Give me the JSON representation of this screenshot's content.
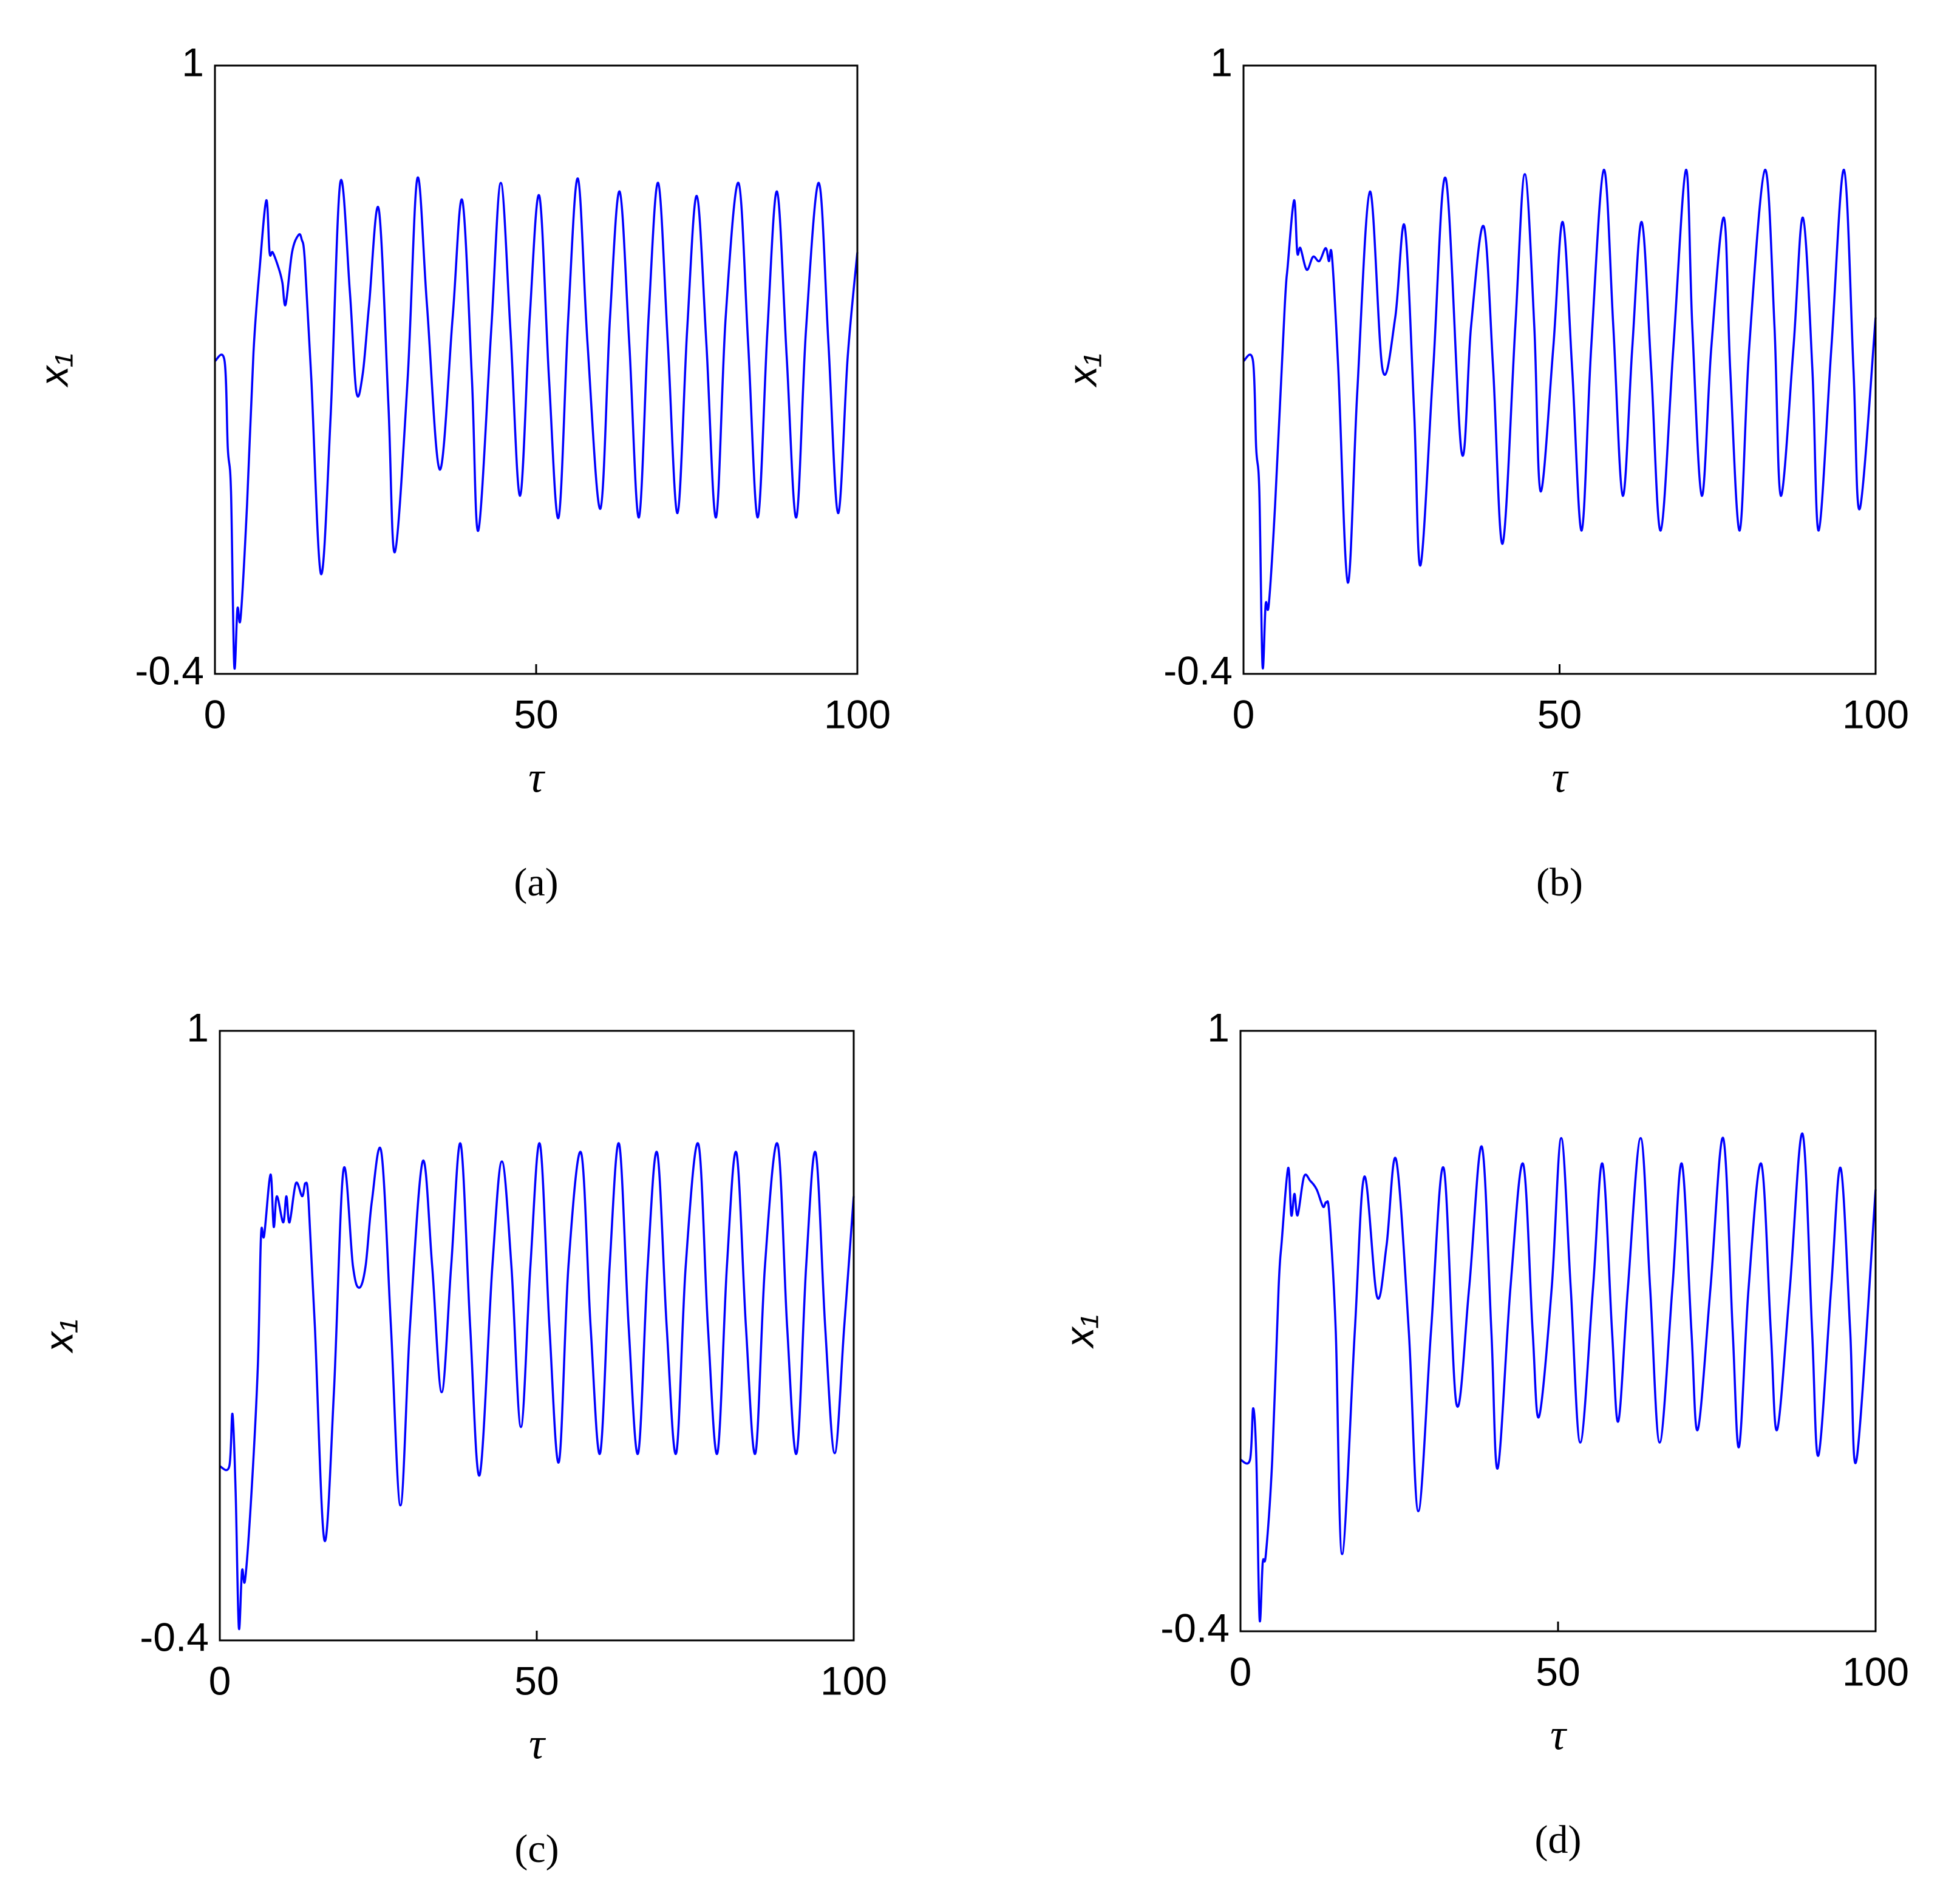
{
  "chart_data": [
    {
      "type": "line",
      "caption": "(a)",
      "x_label": "τ",
      "y_label": "x₁",
      "color": "#0000ff",
      "xlim": [
        0,
        100
      ],
      "xticks": [
        0,
        50,
        100
      ],
      "ylim": [
        -0.4,
        1
      ],
      "yticks": [
        -0.4,
        1
      ],
      "x": [
        0,
        1.5,
        2,
        2.5,
        3,
        3.5,
        4,
        5,
        6,
        7,
        8,
        8.5,
        9,
        10,
        10.5,
        11,
        12,
        13,
        13.5,
        14,
        15,
        16.5,
        18,
        19.5,
        21,
        22,
        23,
        24,
        25.5,
        27,
        28,
        30,
        31.5,
        33,
        35,
        37,
        38.5,
        40,
        41,
        43,
        44.5,
        46,
        47.5,
        49,
        50.5,
        52,
        53.5,
        55,
        56.5,
        58,
        60,
        61.5,
        63,
        64.5,
        66,
        67.5,
        69,
        70.5,
        72,
        73.5,
        75,
        76.5,
        78,
        79.5,
        81.5,
        83,
        84.5,
        86,
        87.5,
        89,
        90.5,
        92,
        94,
        95.5,
        97,
        98.5,
        100
      ],
      "values": [
        0.32,
        0.32,
        0.12,
        0.02,
        -0.38,
        -0.25,
        -0.27,
        -0.01,
        0.34,
        0.54,
        0.69,
        0.57,
        0.57,
        0.53,
        0.5,
        0.45,
        0.57,
        0.61,
        0.6,
        0.55,
        0.28,
        -0.17,
        0.19,
        0.73,
        0.48,
        0.25,
        0.29,
        0.45,
        0.67,
        0.22,
        -0.12,
        0.28,
        0.74,
        0.45,
        0.07,
        0.42,
        0.69,
        0.28,
        -0.07,
        0.39,
        0.73,
        0.39,
        0.01,
        0.42,
        0.7,
        0.28,
        -0.04,
        0.42,
        0.74,
        0.36,
        -0.02,
        0.42,
        0.71,
        0.36,
        -0.04,
        0.42,
        0.73,
        0.36,
        -0.03,
        0.39,
        0.7,
        0.36,
        -0.04,
        0.42,
        0.73,
        0.36,
        -0.04,
        0.39,
        0.71,
        0.33,
        -0.04,
        0.39,
        0.73,
        0.36,
        -0.03,
        0.33,
        0.57
      ]
    },
    {
      "type": "line",
      "caption": "(b)",
      "x_label": "τ",
      "y_label": "x₁",
      "color": "#0000ff",
      "xlim": [
        0,
        100
      ],
      "xticks": [
        0,
        50,
        100
      ],
      "ylim": [
        -0.4,
        1
      ],
      "yticks": [
        -0.4,
        1
      ],
      "x": [
        0,
        1.5,
        2,
        2.5,
        3,
        3.5,
        4,
        5,
        6.5,
        7,
        8,
        8.5,
        9,
        10,
        11,
        12,
        13,
        13.5,
        14,
        15,
        16.5,
        18,
        20,
        22,
        24,
        25.5,
        27,
        28,
        30,
        32,
        34.5,
        36,
        38,
        39.5,
        41,
        43,
        44.5,
        46,
        47,
        49,
        50.5,
        52,
        53.5,
        55,
        57,
        58.5,
        60,
        61.5,
        63,
        64.5,
        66,
        68,
        70,
        71,
        72.5,
        74,
        76,
        77,
        78.5,
        80,
        82.5,
        84,
        85,
        87,
        88.5,
        90,
        91,
        93,
        95,
        96.5,
        97.5,
        100
      ],
      "values": [
        0.32,
        0.32,
        0.12,
        0.02,
        -0.38,
        -0.24,
        -0.24,
        -0.01,
        0.44,
        0.54,
        0.69,
        0.57,
        0.58,
        0.53,
        0.56,
        0.55,
        0.58,
        0.55,
        0.56,
        0.3,
        -0.19,
        0.25,
        0.71,
        0.3,
        0.42,
        0.63,
        0.2,
        -0.15,
        0.3,
        0.74,
        0.11,
        0.4,
        0.63,
        0.3,
        -0.1,
        0.4,
        0.75,
        0.4,
        0.02,
        0.35,
        0.64,
        0.3,
        -0.07,
        0.35,
        0.76,
        0.4,
        0.01,
        0.35,
        0.64,
        0.3,
        -0.07,
        0.35,
        0.76,
        0.4,
        0.01,
        0.35,
        0.65,
        0.3,
        -0.07,
        0.35,
        0.76,
        0.4,
        0.01,
        0.35,
        0.65,
        0.3,
        -0.07,
        0.35,
        0.76,
        0.3,
        -0.02,
        0.42
      ]
    },
    {
      "type": "line",
      "caption": "(c)",
      "x_label": "τ",
      "y_label": "x₁",
      "color": "#0000ff",
      "xlim": [
        0,
        100
      ],
      "xticks": [
        0,
        50,
        100
      ],
      "ylim": [
        -0.4,
        1
      ],
      "yticks": [
        -0.4,
        1
      ],
      "x": [
        0,
        1.5,
        2,
        2.5,
        3,
        3.5,
        4,
        5,
        6,
        6.5,
        7,
        8,
        8.5,
        9,
        10,
        10.5,
        11,
        12,
        13,
        13.5,
        14,
        15,
        16.5,
        18,
        19.5,
        21,
        22,
        23,
        24,
        25.5,
        27,
        28.5,
        30,
        32,
        33.5,
        35,
        36.5,
        38,
        39.5,
        41,
        43,
        44.5,
        46,
        47.5,
        49,
        50.5,
        52,
        53.5,
        55,
        57,
        58.5,
        60,
        61.5,
        63,
        64.5,
        66,
        67.5,
        69,
        70.5,
        72,
        73.5,
        75.5,
        77,
        78.5,
        80,
        81.5,
        83,
        84.5,
        86,
        88,
        89.5,
        91,
        92.5,
        94,
        95.5,
        97,
        98.5,
        100
      ],
      "values": [
        0,
        0,
        0.12,
        -0.06,
        -0.37,
        -0.24,
        -0.26,
        -0.06,
        0.23,
        0.53,
        0.53,
        0.67,
        0.55,
        0.62,
        0.56,
        0.62,
        0.56,
        0.65,
        0.62,
        0.65,
        0.61,
        0.32,
        -0.17,
        0.17,
        0.68,
        0.46,
        0.41,
        0.46,
        0.61,
        0.72,
        0.32,
        -0.09,
        0.32,
        0.7,
        0.46,
        0.17,
        0.46,
        0.74,
        0.32,
        -0.02,
        0.46,
        0.7,
        0.46,
        0.09,
        0.46,
        0.74,
        0.32,
        0.01,
        0.46,
        0.72,
        0.32,
        0.03,
        0.46,
        0.74,
        0.32,
        0.03,
        0.46,
        0.72,
        0.32,
        0.03,
        0.46,
        0.74,
        0.32,
        0.03,
        0.46,
        0.72,
        0.32,
        0.03,
        0.46,
        0.74,
        0.32,
        0.03,
        0.46,
        0.72,
        0.32,
        0.03,
        0.32,
        0.62
      ]
    },
    {
      "type": "line",
      "caption": "(d)",
      "x_label": "τ",
      "y_label": "x₁",
      "color": "#0000ff",
      "xlim": [
        0,
        100
      ],
      "xticks": [
        0,
        50,
        100
      ],
      "ylim": [
        -0.4,
        1
      ],
      "yticks": [
        -0.4,
        1
      ],
      "x": [
        0,
        1.5,
        2,
        2.5,
        3,
        3.5,
        4,
        5,
        6,
        6.5,
        7.5,
        8,
        8.5,
        9,
        10,
        11,
        12,
        13,
        13.5,
        14,
        15,
        16,
        18,
        19.5,
        21.5,
        23,
        24.5,
        26.5,
        28,
        30,
        32,
        34,
        36,
        38,
        39.5,
        40.5,
        42.5,
        44.5,
        46,
        47,
        49,
        50.5,
        52,
        53.5,
        55.5,
        57,
        58.5,
        59.5,
        61,
        63,
        64.5,
        66,
        68,
        69.5,
        71,
        72,
        74,
        76,
        77.5,
        78.5,
        80,
        82,
        83.5,
        84.5,
        86.5,
        88.5,
        90,
        91,
        93,
        94.5,
        96,
        97,
        100
      ],
      "values": [
        0,
        0,
        0.12,
        0.0,
        -0.37,
        -0.24,
        -0.22,
        0.0,
        0.4,
        0.51,
        0.68,
        0.57,
        0.62,
        0.57,
        0.66,
        0.65,
        0.63,
        0.59,
        0.6,
        0.57,
        0.3,
        -0.22,
        0.3,
        0.66,
        0.38,
        0.5,
        0.7,
        0.3,
        -0.12,
        0.3,
        0.68,
        0.13,
        0.4,
        0.73,
        0.3,
        -0.02,
        0.4,
        0.69,
        0.3,
        0.1,
        0.4,
        0.75,
        0.4,
        0.04,
        0.4,
        0.69,
        0.3,
        0.09,
        0.4,
        0.75,
        0.4,
        0.04,
        0.4,
        0.69,
        0.3,
        0.07,
        0.4,
        0.75,
        0.3,
        0.03,
        0.4,
        0.69,
        0.3,
        0.07,
        0.4,
        0.76,
        0.3,
        0.01,
        0.4,
        0.68,
        0.3,
        0.0,
        0.63
      ]
    }
  ]
}
